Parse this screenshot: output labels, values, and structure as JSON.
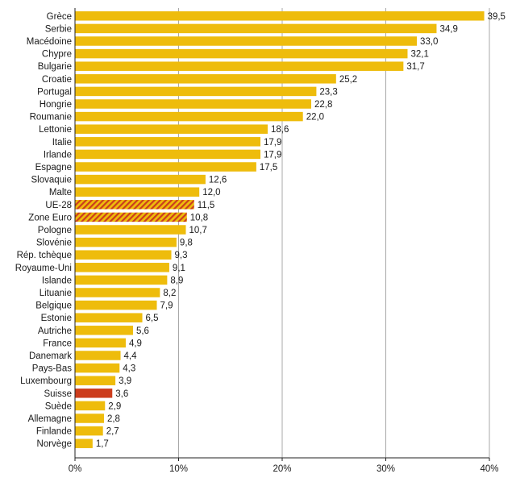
{
  "chart_data": {
    "type": "bar",
    "orientation": "horizontal",
    "categories": [
      "Grèce",
      "Serbie",
      "Macédoine",
      "Chypre",
      "Bulgarie",
      "Croatie",
      "Portugal",
      "Hongrie",
      "Roumanie",
      "Lettonie",
      "Italie",
      "Irlande",
      "Espagne",
      "Slovaquie",
      "Malte",
      "UE-28",
      "Zone Euro",
      "Pologne",
      "Slovénie",
      "Rép. tchèque",
      "Royaume-Uni",
      "Islande",
      "Lituanie",
      "Belgique",
      "Estonie",
      "Autriche",
      "France",
      "Danemark",
      "Pays-Bas",
      "Luxembourg",
      "Suisse",
      "Suède",
      "Allemagne",
      "Finlande",
      "Norvège"
    ],
    "values": [
      39.5,
      34.9,
      33.0,
      32.1,
      31.7,
      25.2,
      23.3,
      22.8,
      22.0,
      18.6,
      17.9,
      17.9,
      17.5,
      12.6,
      12.0,
      11.5,
      10.8,
      10.7,
      9.8,
      9.3,
      9.1,
      8.9,
      8.2,
      7.9,
      6.5,
      5.6,
      4.9,
      4.4,
      4.3,
      3.9,
      3.6,
      2.9,
      2.8,
      2.7,
      1.7
    ],
    "value_labels": [
      "39,5",
      "34,9",
      "33,0",
      "32,1",
      "31,7",
      "25,2",
      "23,3",
      "22,8",
      "22,0",
      "18,6",
      "17,9",
      "17,9",
      "17,5",
      "12,6",
      "12,0",
      "11,5",
      "10,8",
      "10,7",
      "9,8",
      "9,3",
      "9,1",
      "8,9",
      "8,2",
      "7,9",
      "6,5",
      "5,6",
      "4,9",
      "4,4",
      "4,3",
      "3,9",
      "3,6",
      "2,9",
      "2,8",
      "2,7",
      "1,7"
    ],
    "highlight": {
      "Suisse": "solid-red",
      "UE-28": "hatched",
      "Zone Euro": "hatched"
    },
    "xlim": [
      0,
      40
    ],
    "xticks": [
      0,
      10,
      20,
      30,
      40
    ],
    "xtick_labels": [
      "0%",
      "10%",
      "20%",
      "30%",
      "40%"
    ],
    "grid": "vertical",
    "colors": {
      "bar": "#eebc0c",
      "highlight": "#cc3d1d",
      "hatch_stripe": "#cc3d1d",
      "grid": "#a8a8a8",
      "axis": "#222222"
    }
  }
}
